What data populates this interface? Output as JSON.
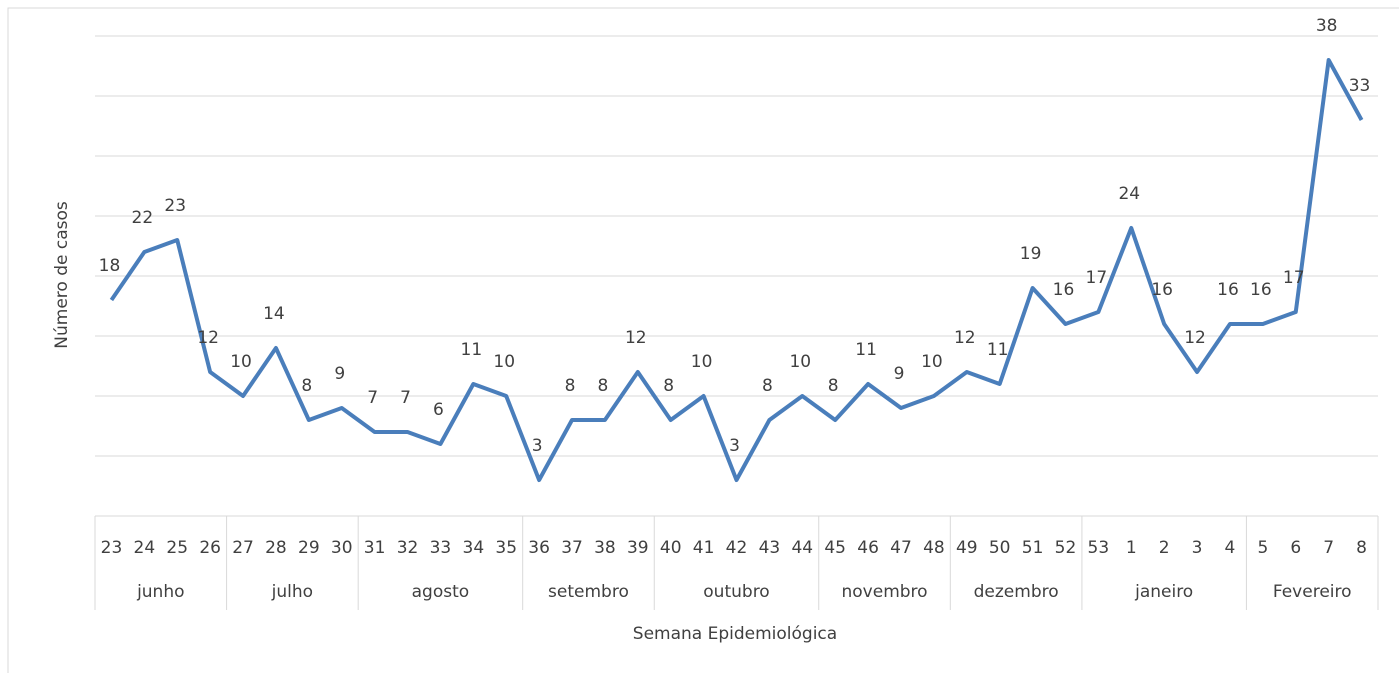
{
  "chart_data": {
    "type": "line",
    "y_label": "Número de casos",
    "x_label": "Semana Epidemiológica",
    "groups": [
      {
        "name": "junho",
        "categories": [
          "23",
          "24",
          "25",
          "26"
        ]
      },
      {
        "name": "julho",
        "categories": [
          "27",
          "28",
          "29",
          "30"
        ]
      },
      {
        "name": "agosto",
        "categories": [
          "31",
          "32",
          "33",
          "34",
          "35"
        ]
      },
      {
        "name": "setembro",
        "categories": [
          "36",
          "37",
          "38",
          "39"
        ]
      },
      {
        "name": "outubro",
        "categories": [
          "40",
          "41",
          "42",
          "43",
          "44"
        ]
      },
      {
        "name": "novembro",
        "categories": [
          "45",
          "46",
          "47",
          "48"
        ]
      },
      {
        "name": "dezembro",
        "categories": [
          "49",
          "50",
          "51",
          "52"
        ]
      },
      {
        "name": "janeiro",
        "categories": [
          "53",
          "1",
          "2",
          "3",
          "4"
        ]
      },
      {
        "name": "Fevereiro",
        "categories": [
          "5",
          "6",
          "7",
          "8"
        ]
      }
    ],
    "color": "#4a7ebb",
    "values": [
      18,
      22,
      23,
      12,
      10,
      14,
      8,
      9,
      7,
      7,
      6,
      11,
      10,
      3,
      8,
      8,
      12,
      8,
      10,
      3,
      8,
      10,
      8,
      11,
      9,
      10,
      12,
      11,
      19,
      16,
      17,
      24,
      16,
      12,
      16,
      16,
      17,
      38,
      33
    ],
    "ylim": [
      0,
      40
    ],
    "yticks": [
      0,
      5,
      10,
      15,
      20,
      25,
      30,
      35,
      40
    ],
    "grid": true
  }
}
